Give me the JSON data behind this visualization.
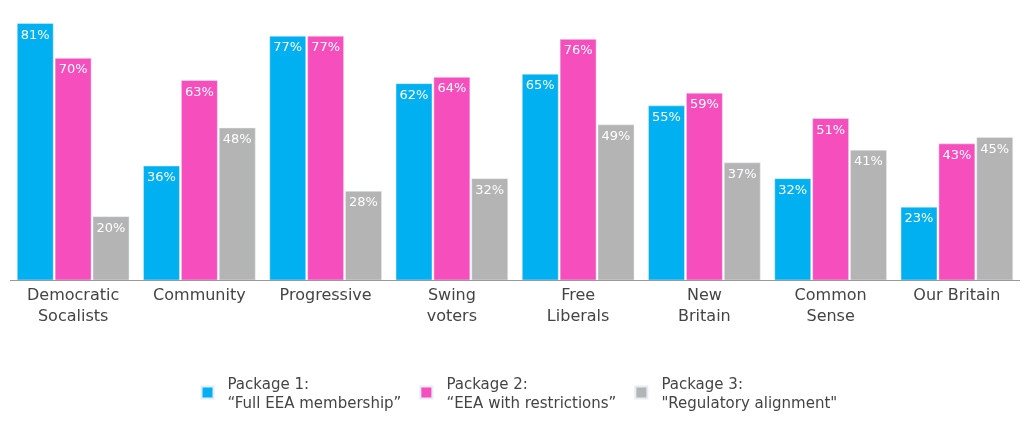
{
  "chart_data": {
    "type": "bar",
    "categories": [
      "Democratic\nSocalists",
      "Community",
      "Progressive",
      "Swing\nvoters",
      "Free\nLiberals",
      "New\nBritain",
      "Common\nSense",
      "Our Britain"
    ],
    "series": [
      {
        "name": "Package 1:\n“Full EEA membership”",
        "color": "#00b0f0",
        "values": [
          81,
          36,
          77,
          62,
          65,
          55,
          32,
          23
        ],
        "value_labels": [
          "81%",
          "36%",
          "77%",
          "62%",
          "65%",
          "55%",
          "32%",
          "23%"
        ]
      },
      {
        "name": "Package 2:\n“EEA with restrictions”",
        "color": "#f64fbd",
        "values": [
          70,
          63,
          77,
          64,
          76,
          59,
          51,
          43
        ],
        "value_labels": [
          "70%",
          "63%",
          "77%",
          "64%",
          "76%",
          "59%",
          "51%",
          "43%"
        ]
      },
      {
        "name": "Package 3:\n\"Regulatory alignment\"",
        "color": "#b4b4b4",
        "values": [
          20,
          48,
          28,
          32,
          49,
          37,
          41,
          45
        ],
        "value_labels": [
          "20%",
          "48%",
          "28%",
          "32%",
          "49%",
          "37%",
          "41%",
          "45%"
        ]
      }
    ],
    "legend": "bottom"
  }
}
